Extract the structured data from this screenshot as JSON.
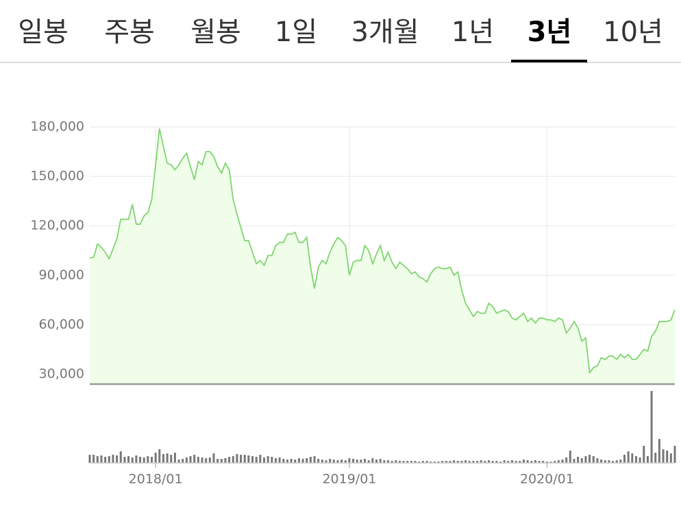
{
  "tabs": {
    "items": [
      "일봉",
      "주봉",
      "월봉",
      "1일",
      "3개월",
      "1년",
      "3년",
      "10년"
    ],
    "active": 6
  },
  "chart_data": [
    {
      "type": "area",
      "color": "#7fd46f",
      "fill": "#effde9",
      "grid": true,
      "ylim": [
        24000,
        180000
      ],
      "yticks": [
        {
          "value": 30000,
          "label": "30,000"
        },
        {
          "value": 60000,
          "label": "60,000"
        },
        {
          "value": 90000,
          "label": "90,000"
        },
        {
          "value": 120000,
          "label": "120,000"
        },
        {
          "value": 150000,
          "label": "150,000"
        },
        {
          "value": 180000,
          "label": "180,000"
        }
      ],
      "values": [
        100500,
        101000,
        109000,
        107000,
        104000,
        100000,
        106000,
        112000,
        124000,
        124000,
        124000,
        133000,
        121000,
        121000,
        126000,
        128000,
        136000,
        157000,
        179000,
        168000,
        158000,
        157000,
        154000,
        157000,
        161000,
        164000,
        156000,
        148000,
        159000,
        157000,
        165000,
        165000,
        162000,
        156000,
        152000,
        158000,
        154000,
        136000,
        127000,
        119000,
        111000,
        111000,
        104000,
        97000,
        99000,
        96000,
        102000,
        102000,
        108000,
        110000,
        110000,
        115000,
        115000,
        116000,
        110000,
        110000,
        113000,
        95000,
        82000,
        95000,
        99000,
        97000,
        104000,
        109000,
        113000,
        111000,
        108000,
        90000,
        98000,
        99000,
        99000,
        108000,
        105000,
        97000,
        103000,
        108000,
        99000,
        104000,
        98000,
        94000,
        98000,
        96000,
        94000,
        91000,
        92000,
        89000,
        88000,
        86000,
        91000,
        94000,
        95000,
        94000,
        94000,
        95000,
        90000,
        92000,
        81000,
        73000,
        69000,
        65000,
        68000,
        67000,
        67000,
        73000,
        71000,
        67000,
        68000,
        69000,
        68000,
        64000,
        63000,
        65000,
        67000,
        62000,
        64000,
        61000,
        64000,
        64000,
        63000,
        63000,
        62000,
        64000,
        63000,
        55000,
        58000,
        62000,
        58000,
        50000,
        52000,
        31000,
        34000,
        35000,
        40000,
        39000,
        41000,
        41000,
        39000,
        42000,
        40000,
        42000,
        39000,
        39000,
        42000,
        45000,
        44000,
        53000,
        56000,
        62000,
        62000,
        62000,
        63000,
        69000
      ]
    },
    {
      "type": "bar",
      "color": "#777777",
      "ylim": [
        0,
        105
      ],
      "categories": [
        null,
        null,
        null,
        null,
        null,
        null,
        null,
        null,
        null,
        null,
        null,
        null,
        null,
        null,
        null,
        null,
        null,
        "2018/01",
        null,
        null,
        null,
        null,
        null,
        null,
        null,
        null,
        null,
        null,
        null,
        null,
        null,
        null,
        null,
        null,
        null,
        null,
        null,
        null,
        null,
        null,
        null,
        null,
        null,
        null,
        null,
        null,
        null,
        null,
        null,
        null,
        null,
        null,
        null,
        null,
        null,
        null,
        null,
        null,
        null,
        null,
        null,
        null,
        null,
        null,
        null,
        null,
        null,
        "2019/01",
        null,
        null,
        null,
        null,
        null,
        null,
        null,
        null,
        null,
        null,
        null,
        null,
        null,
        null,
        null,
        null,
        null,
        null,
        null,
        null,
        null,
        null,
        null,
        null,
        null,
        null,
        null,
        null,
        null,
        null,
        null,
        null,
        null,
        null,
        null,
        null,
        null,
        null,
        null,
        null,
        null,
        null,
        null,
        null,
        null,
        null,
        null,
        null,
        null,
        null,
        "2020/01",
        null,
        null,
        null,
        null,
        null,
        null,
        null,
        null,
        null,
        null,
        null,
        null,
        null,
        null,
        null,
        null,
        null,
        null,
        null,
        null,
        null,
        null,
        null,
        null,
        null,
        null,
        null,
        null,
        null,
        null,
        null,
        null,
        null
      ],
      "values": [
        12,
        12,
        10,
        11,
        9,
        10,
        12,
        11,
        17,
        9,
        10,
        8,
        11,
        9,
        8,
        10,
        9,
        15,
        20,
        13,
        14,
        12,
        15,
        5,
        6,
        8,
        10,
        12,
        9,
        8,
        7,
        8,
        14,
        6,
        6,
        7,
        9,
        10,
        13,
        12,
        12,
        11,
        10,
        9,
        12,
        8,
        10,
        9,
        7,
        8,
        6,
        5,
        6,
        5,
        7,
        6,
        7,
        9,
        10,
        6,
        5,
        4,
        6,
        5,
        4,
        5,
        4,
        7,
        6,
        5,
        5,
        6,
        4,
        7,
        5,
        6,
        4,
        4,
        3,
        4,
        3,
        3,
        3,
        3,
        3,
        2,
        3,
        3,
        2,
        2,
        2,
        3,
        3,
        3,
        4,
        3,
        3,
        4,
        3,
        3,
        3,
        4,
        3,
        4,
        3,
        3,
        2,
        4,
        3,
        4,
        3,
        3,
        5,
        4,
        3,
        4,
        3,
        3,
        2,
        2,
        3,
        4,
        5,
        8,
        18,
        6,
        9,
        7,
        10,
        12,
        10,
        7,
        5,
        4,
        4,
        3,
        4,
        5,
        12,
        17,
        14,
        10,
        8,
        25,
        10,
        105,
        15,
        35,
        20,
        18,
        14,
        25
      ]
    }
  ]
}
